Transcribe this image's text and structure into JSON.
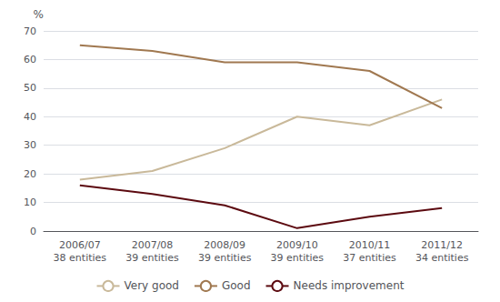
{
  "chart_data": {
    "type": "line",
    "ylabel": "%",
    "categories": [
      "2006/07\n38 entities",
      "2007/08\n39 entities",
      "2008/09\n39 entities",
      "2009/10\n39 entities",
      "2010/11\n37 entities",
      "2011/12\n34 entities"
    ],
    "series": [
      {
        "name": "Very good",
        "color": "#c9b99a",
        "values": [
          18,
          21,
          29,
          40,
          37,
          46
        ]
      },
      {
        "name": "Good",
        "color": "#a07850",
        "values": [
          65,
          63,
          59,
          59,
          56,
          43
        ]
      },
      {
        "name": "Needs improvement",
        "color": "#5c0a10",
        "values": [
          16,
          13,
          9,
          1,
          5,
          8
        ]
      }
    ],
    "ylim": [
      0,
      70
    ],
    "yticks": [
      0,
      10,
      20,
      30,
      40,
      50,
      60,
      70
    ],
    "grid": true,
    "legend": "bottom"
  }
}
